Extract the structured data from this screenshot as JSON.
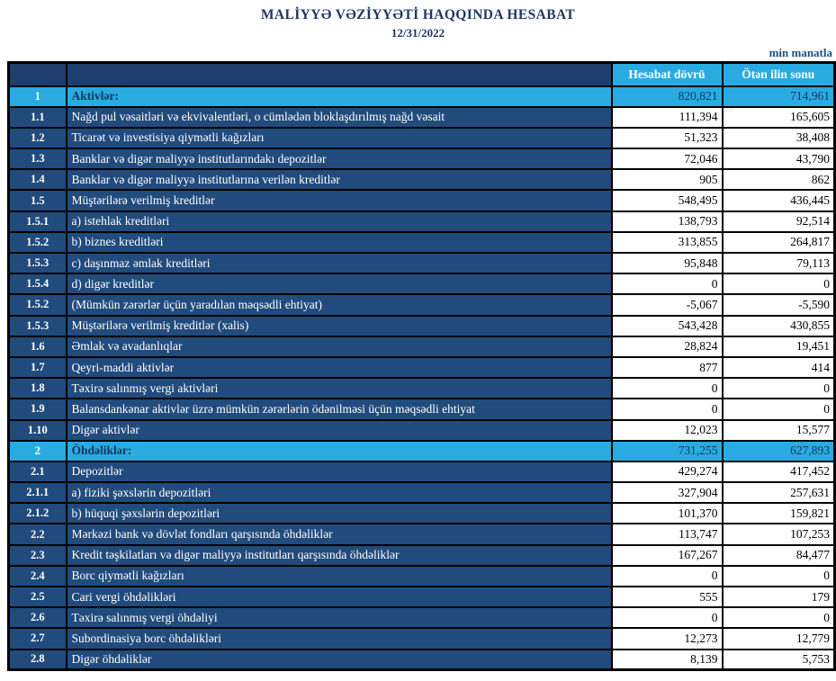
{
  "title": "MALİYYƏ VƏZİYYƏTİ HAQQINDA HESABAT",
  "date": "12/31/2022",
  "unit_note": "min manatla",
  "colors": {
    "title_navy": "#1F3864",
    "row_navy": "#214B7C",
    "header_navy": "#1E3E6D",
    "accent_cyan": "#29ABE2",
    "section_text": "#17365D",
    "border": "#000000"
  },
  "table": {
    "col_headers": [
      "Hesabat dövrü",
      "Ötən ilin sonu"
    ],
    "rows": [
      {
        "num": "1",
        "label": "Aktivlər:",
        "current": "820,821",
        "previous": "714,961",
        "type": "section"
      },
      {
        "num": "1.1",
        "label": "Nağd pul vəsaitləri və  ekvivalentləri, o cümlədən bloklaşdırılmış nağd vəsait",
        "current": "111,394",
        "previous": "165,605",
        "type": "data"
      },
      {
        "num": "1.2",
        "label": "Ticarət və investisiya qiymətli kağızları",
        "current": "51,323",
        "previous": "38,408",
        "type": "data"
      },
      {
        "num": "1.3",
        "label": "Banklar və digər maliyyə institutlarındakı depozitlər",
        "current": "72,046",
        "previous": "43,790",
        "type": "data"
      },
      {
        "num": "1.4",
        "label": "Banklar və digər maliyyə institutlarına verilən kreditlər",
        "current": "905",
        "previous": "862",
        "type": "data"
      },
      {
        "num": "1.5",
        "label": "Müştərilərə verilmiş kreditlər",
        "current": "548,495",
        "previous": "436,445",
        "type": "data"
      },
      {
        "num": "1.5.1",
        "label": "a) istehlak kreditləri",
        "current": "138,793",
        "previous": "92,514",
        "type": "data"
      },
      {
        "num": "1.5.2",
        "label": "b) biznes kreditləri",
        "current": "313,855",
        "previous": "264,817",
        "type": "data"
      },
      {
        "num": "1.5.3",
        "label": "c) daşınmaz əmlak kreditləri",
        "current": "95,848",
        "previous": "79,113",
        "type": "data"
      },
      {
        "num": "1.5.4",
        "label": "d) digər kreditlər",
        "current": "0",
        "previous": "0",
        "type": "data"
      },
      {
        "num": "1.5.2",
        "label": "(Mümkün zərərlər üçün yaradılan məqsədli ehtiyat)",
        "current": "-5,067",
        "previous": "-5,590",
        "type": "data"
      },
      {
        "num": "1.5.3",
        "label": "Müştərilərə verilmiş kreditlər (xalis)",
        "current": "543,428",
        "previous": "430,855",
        "type": "data"
      },
      {
        "num": "1.6",
        "label": "Əmlak və avadanlıqlar",
        "current": "28,824",
        "previous": "19,451",
        "type": "data"
      },
      {
        "num": "1.7",
        "label": "Qeyri-maddi aktivlər",
        "current": "877",
        "previous": "414",
        "type": "data"
      },
      {
        "num": "1.8",
        "label": "Təxirə salınmış vergi aktivləri",
        "current": "0",
        "previous": "0",
        "type": "data"
      },
      {
        "num": "1.9",
        "label": "Balansdankənar aktivlər üzrə mümkün zərərlərin ödənilməsi üçün məqsədli ehtiyat",
        "current": "0",
        "previous": "0",
        "type": "data"
      },
      {
        "num": "1.10",
        "label": "Digər aktivlər",
        "current": "12,023",
        "previous": "15,577",
        "type": "data"
      },
      {
        "num": "2",
        "label": "Öhdəliklər:",
        "current": "731,255",
        "previous": "627,893",
        "type": "section"
      },
      {
        "num": "2.1",
        "label": "Depozitlər",
        "current": "429,274",
        "previous": "417,452",
        "type": "data"
      },
      {
        "num": "2.1.1",
        "label": "a) fiziki şəxslərin depozitləri",
        "current": "327,904",
        "previous": "257,631",
        "type": "data"
      },
      {
        "num": "2.1.2",
        "label": "b) hüquqi şəxslərin depozitləri",
        "current": "101,370",
        "previous": "159,821",
        "type": "data"
      },
      {
        "num": "2.2",
        "label": "Mərkəzi bank və dövlət fondları qarşısında öhdəliklər",
        "current": "113,747",
        "previous": "107,253",
        "type": "data"
      },
      {
        "num": "2.3",
        "label": "Kredit təşkilatları və digər maliyyə institutları qarşısında öhdəliklər",
        "current": "167,267",
        "previous": "84,477",
        "type": "data"
      },
      {
        "num": "2.4",
        "label": "Borc qiymətli kağızları",
        "current": "0",
        "previous": "0",
        "type": "data"
      },
      {
        "num": "2.5",
        "label": "Cari vergi öhdəlikləri",
        "current": "555",
        "previous": "179",
        "type": "data"
      },
      {
        "num": "2.6",
        "label": "Təxirə salınmış vergi öhdəliyi",
        "current": "0",
        "previous": "0",
        "type": "data"
      },
      {
        "num": "2.7",
        "label": "Subordinasiya borc öhdəlikləri",
        "current": "12,273",
        "previous": "12,779",
        "type": "data"
      },
      {
        "num": "2.8",
        "label": "Digər öhdəliklər",
        "current": "8,139",
        "previous": "5,753",
        "type": "data"
      }
    ]
  }
}
